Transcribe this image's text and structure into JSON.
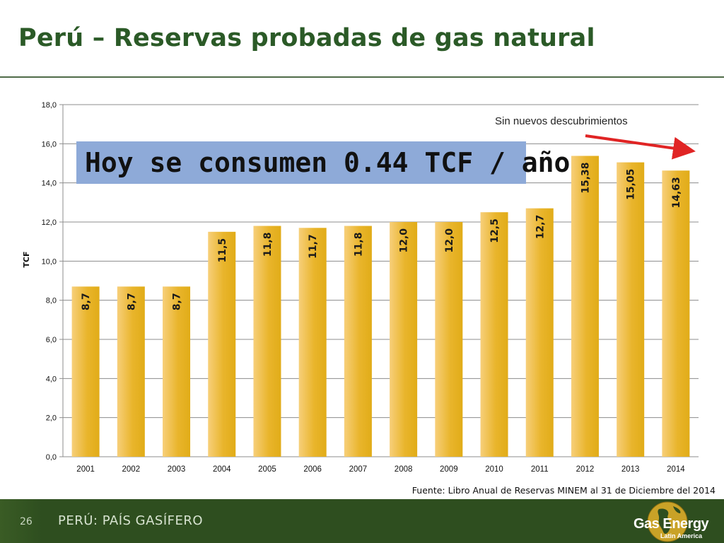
{
  "slide": {
    "title": "Perú – Reservas probadas de gas natural",
    "banner": "Hoy se consumen 0.44 TCF / año",
    "note": "Sin nuevos descubrimientos",
    "source": "Fuente: Libro Anual de Reservas MINEM al 31 de Diciembre del 2014"
  },
  "footer": {
    "page_number": "26",
    "section": "PERÚ: PAÍS GASÍFERO",
    "logo_name": "Gas Energy",
    "logo_sub": "Latin America"
  },
  "colors": {
    "title": "#2b5a27",
    "bar_light": "#f7cf7a",
    "bar_dark": "#e1ac18",
    "banner_bg": "#8eaad8",
    "arrow": "#e02424",
    "footer_bg": "#2e4e1f"
  },
  "chart_data": {
    "type": "bar",
    "ylabel": "TCF",
    "xlabel": "",
    "ylim": [
      0,
      18
    ],
    "ytick_step": 2,
    "ytick_labels": [
      "0,0",
      "2,0",
      "4,0",
      "6,0",
      "8,0",
      "10,0",
      "12,0",
      "14,0",
      "16,0",
      "18,0"
    ],
    "grid": true,
    "categories": [
      "2001",
      "2002",
      "2003",
      "2004",
      "2005",
      "2006",
      "2007",
      "2008",
      "2009",
      "2010",
      "2011",
      "2012",
      "2013",
      "2014"
    ],
    "values": [
      8.7,
      8.7,
      8.7,
      11.5,
      11.8,
      11.7,
      11.8,
      12.0,
      12.0,
      12.5,
      12.7,
      15.38,
      15.05,
      14.63
    ],
    "data_labels": [
      "8,7",
      "8,7",
      "8,7",
      "11,5",
      "11,8",
      "11,7",
      "11,8",
      "12,0",
      "12,0",
      "12,5",
      "12,7",
      "15,38",
      "15,05",
      "14,63"
    ]
  }
}
